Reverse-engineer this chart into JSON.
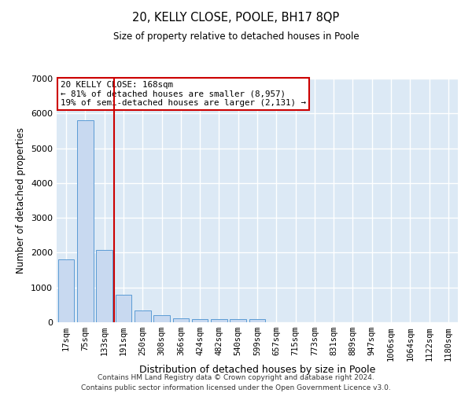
{
  "title": "20, KELLY CLOSE, POOLE, BH17 8QP",
  "subtitle": "Size of property relative to detached houses in Poole",
  "xlabel": "Distribution of detached houses by size in Poole",
  "ylabel": "Number of detached properties",
  "bin_labels": [
    "17sqm",
    "75sqm",
    "133sqm",
    "191sqm",
    "250sqm",
    "308sqm",
    "366sqm",
    "424sqm",
    "482sqm",
    "540sqm",
    "599sqm",
    "657sqm",
    "715sqm",
    "773sqm",
    "831sqm",
    "889sqm",
    "947sqm",
    "1006sqm",
    "1064sqm",
    "1122sqm",
    "1180sqm"
  ],
  "bar_values": [
    1800,
    5800,
    2080,
    800,
    350,
    200,
    120,
    100,
    100,
    100,
    80,
    0,
    0,
    0,
    0,
    0,
    0,
    0,
    0,
    0,
    0
  ],
  "bar_color": "#c8d9f0",
  "bar_edge_color": "#5b9bd5",
  "property_bin_index": 2.5,
  "red_line_color": "#cc0000",
  "annotation_text": "20 KELLY CLOSE: 168sqm\n← 81% of detached houses are smaller (8,957)\n19% of semi-detached houses are larger (2,131) →",
  "annotation_box_color": "#ffffff",
  "annotation_box_edge_color": "#cc0000",
  "ylim": [
    0,
    7000
  ],
  "yticks": [
    0,
    1000,
    2000,
    3000,
    4000,
    5000,
    6000,
    7000
  ],
  "background_color": "#dce9f5",
  "grid_color": "#ffffff",
  "footer_line1": "Contains HM Land Registry data © Crown copyright and database right 2024.",
  "footer_line2": "Contains public sector information licensed under the Open Government Licence v3.0."
}
